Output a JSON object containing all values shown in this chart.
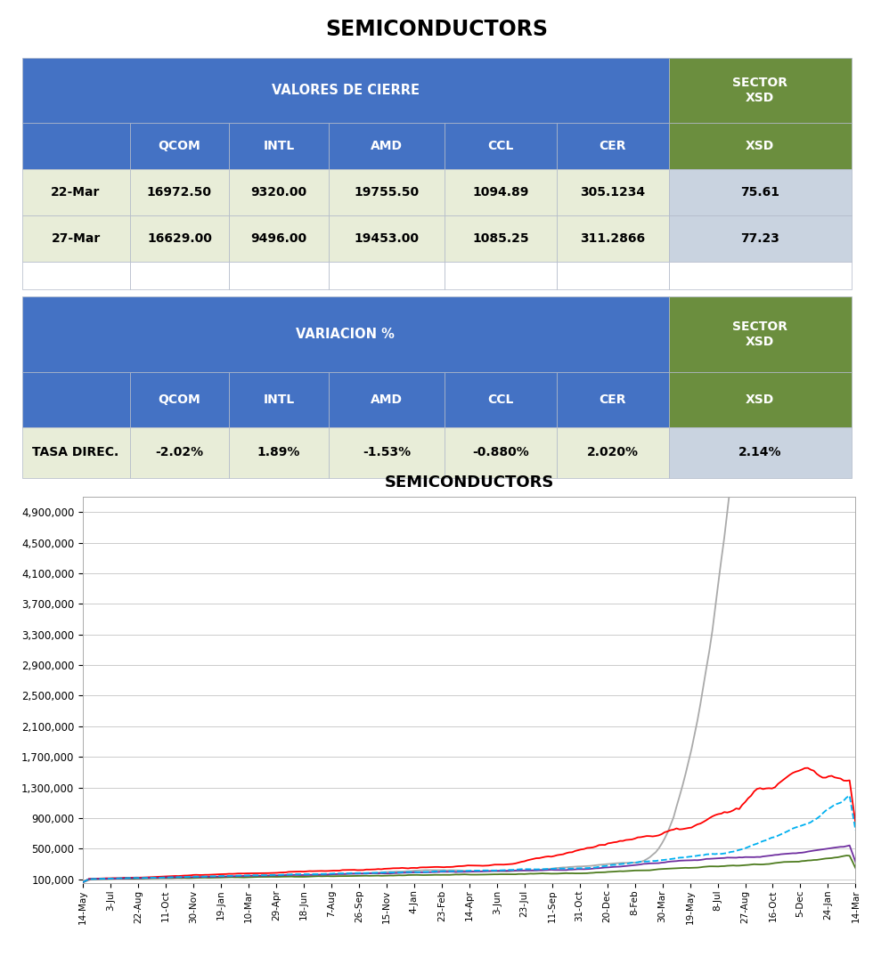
{
  "title_main": "SEMICONDUCTORS",
  "table1_header_label": "VALORES DE CIERRE",
  "table1_sector_label": "SECTOR\nXSD",
  "table2_header_label": "VARIACION %",
  "table2_sector_label": "SECTOR\nXSD",
  "columns": [
    "QCOM",
    "INTL",
    "AMD",
    "CCL",
    "CER"
  ],
  "rows_cierre": [
    {
      "label": "22-Mar",
      "values": [
        "16972.50",
        "9320.00",
        "19755.50",
        "1094.89",
        "305.1234"
      ],
      "sector": "75.61"
    },
    {
      "label": "27-Mar",
      "values": [
        "16629.00",
        "9496.00",
        "19453.00",
        "1085.25",
        "311.2866"
      ],
      "sector": "77.23"
    }
  ],
  "rows_variacion": [
    {
      "label": "TASA DIREC.",
      "values": [
        "-2.02%",
        "1.89%",
        "-1.53%",
        "-0.880%",
        "2.020%"
      ],
      "sector": "2.14%"
    }
  ],
  "header_bg": "#4472C4",
  "header_fg": "#FFFFFF",
  "sector_bg": "#6B8E3E",
  "sector_fg": "#FFFFFF",
  "row_bg_light": "#E8EDD8",
  "row_bg_alt": "#C9D3E0",
  "row_bg_white": "#FFFFFF",
  "border_color": "#B0B8C8",
  "chart_title": "SEMICONDUCTORS",
  "chart_bg": "#FFFFFF",
  "chart_grid_color": "#CCCCCC",
  "yticks": [
    100000,
    500000,
    900000,
    1300000,
    1700000,
    2100000,
    2500000,
    2900000,
    3300000,
    3700000,
    4100000,
    4500000,
    4900000
  ],
  "xtick_labels": [
    "14-May",
    "3-Jul",
    "22-Aug",
    "11-Oct",
    "30-Nov",
    "19-Jan",
    "10-Mar",
    "29-Apr",
    "18-Jun",
    "7-Aug",
    "26-Sep",
    "15-Nov",
    "4-Jan",
    "23-Feb",
    "14-Apr",
    "3-Jun",
    "23-Jul",
    "11-Sep",
    "31-Oct",
    "20-Dec",
    "8-Feb",
    "30-Mar",
    "19-May",
    "8-Jul",
    "27-Aug",
    "16-Oct",
    "5-Dec",
    "24-Jan",
    "14-Mar"
  ],
  "series_colors": {
    "QCOM": "#FF0000",
    "INTL": "#4E7C1F",
    "AMD": "#AAAAAA",
    "CCL": "#7030A0",
    "CER": "#00B0F0"
  },
  "ymin": 50000,
  "ymax": 5100000
}
